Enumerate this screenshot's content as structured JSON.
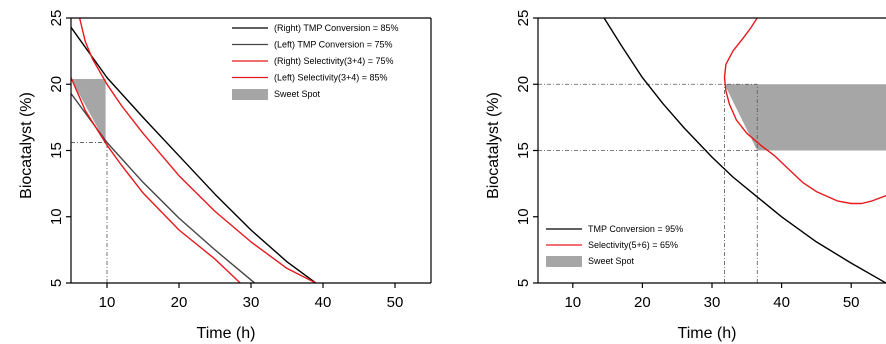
{
  "chart_data": [
    {
      "type": "line",
      "panel": "left",
      "xlabel": "Time (h)",
      "ylabel": "Biocatalyst (%)",
      "xlim": [
        5,
        55
      ],
      "ylim": [
        5,
        25
      ],
      "xticks": [
        10,
        20,
        30,
        40,
        50
      ],
      "yticks": [
        5,
        10,
        15,
        20,
        25
      ],
      "legend_position": "top-right",
      "legend": [
        {
          "label": "(Right) TMP Conversion = 85%",
          "kind": "line",
          "color": "#000000"
        },
        {
          "label": "(Left)   TMP Conversion = 75%",
          "kind": "line",
          "color": "#444444"
        },
        {
          "label": "(Right)  Selectivity(3+4)  = 75%",
          "kind": "line",
          "color": "#e8191d"
        },
        {
          "label": "(Left)    Selectivity(3+4)  = 85%",
          "kind": "line",
          "color": "#e8191d"
        },
        {
          "label": "Sweet Spot",
          "kind": "box",
          "color": "#a6a6a6"
        }
      ],
      "series": [
        {
          "name": "(Right) TMP Conversion = 85%",
          "color": "#000000",
          "x": [
            5,
            10,
            15,
            20,
            25,
            30,
            35,
            39
          ],
          "y": [
            24.3,
            20.5,
            17.5,
            14.6,
            11.7,
            9.0,
            6.6,
            5.0
          ]
        },
        {
          "name": "(Left)   TMP Conversion = 75%",
          "color": "#444444",
          "x": [
            5,
            10,
            15,
            20,
            25,
            30.5
          ],
          "y": [
            19.3,
            15.6,
            12.6,
            9.9,
            7.5,
            5.0
          ]
        },
        {
          "name": "(Right)  Selectivity(3+4)  = 75%",
          "color": "#e8191d",
          "x": [
            6.2,
            7,
            8,
            10,
            12,
            15,
            20,
            25,
            30,
            35,
            39
          ],
          "y": [
            25,
            23.2,
            21.9,
            20.0,
            18.4,
            16.3,
            13.1,
            10.4,
            8.1,
            6.1,
            5.0
          ]
        },
        {
          "name": "(Left)    Selectivity(3+4)  = 85%",
          "color": "#e8191d",
          "x": [
            5,
            7,
            10,
            12,
            15,
            20,
            25,
            28.5
          ],
          "y": [
            20.5,
            18.0,
            15.4,
            13.9,
            11.8,
            9.0,
            6.8,
            5.0
          ]
        }
      ],
      "sweet_spot": {
        "points": [
          [
            5,
            20.4
          ],
          [
            9.8,
            20.4
          ],
          [
            9.8,
            15.6
          ]
        ],
        "color": "#a6a6a6"
      },
      "reference_lines": {
        "vertical": [
          10
        ],
        "horizontal": [
          15.6
        ]
      }
    },
    {
      "type": "line",
      "panel": "right",
      "xlabel": "Time (h)",
      "ylabel": "Biocatalyst (%)",
      "xlim": [
        5,
        55
      ],
      "ylim": [
        5,
        25
      ],
      "xticks": [
        10,
        20,
        30,
        40,
        50
      ],
      "yticks": [
        5,
        10,
        15,
        20,
        25
      ],
      "legend_position": "bottom-left",
      "legend": [
        {
          "label": "TMP Conversion = 95%",
          "kind": "line",
          "color": "#000000"
        },
        {
          "label": "Selectivity(5+6) = 65%",
          "kind": "line",
          "color": "#e8191d"
        },
        {
          "label": "Sweet Spot",
          "kind": "box",
          "color": "#a6a6a6"
        }
      ],
      "series": [
        {
          "name": "TMP Conversion = 95%",
          "color": "#000000",
          "x": [
            14.5,
            17,
            20,
            23,
            26,
            30,
            33,
            36.5,
            40,
            45,
            50,
            55
          ],
          "y": [
            25,
            22.9,
            20.5,
            18.5,
            16.7,
            14.5,
            13.0,
            11.5,
            10.0,
            8.1,
            6.5,
            5.0
          ]
        },
        {
          "name": "Selectivity(5+6) = 65%",
          "color": "#e8191d",
          "x": [
            55,
            53,
            51.5,
            50,
            48,
            45,
            43,
            41,
            39,
            37,
            35,
            33.5,
            32.5,
            32,
            31.8,
            32,
            33,
            34.5,
            35.5,
            36.5
          ],
          "y": [
            11.6,
            11.2,
            11.0,
            11.0,
            11.2,
            11.9,
            12.6,
            13.6,
            14.6,
            15.4,
            16.3,
            17.3,
            18.5,
            19.5,
            20.5,
            21.5,
            22.5,
            23.5,
            24.2,
            25
          ]
        }
      ],
      "sweet_spot": {
        "points": [
          [
            31.8,
            20
          ],
          [
            55,
            20
          ],
          [
            55,
            15
          ],
          [
            36.5,
            15
          ]
        ],
        "color": "#a6a6a6"
      },
      "reference_lines": {
        "vertical": [
          31.8,
          36.5
        ],
        "horizontal": [
          20,
          15
        ]
      }
    }
  ]
}
